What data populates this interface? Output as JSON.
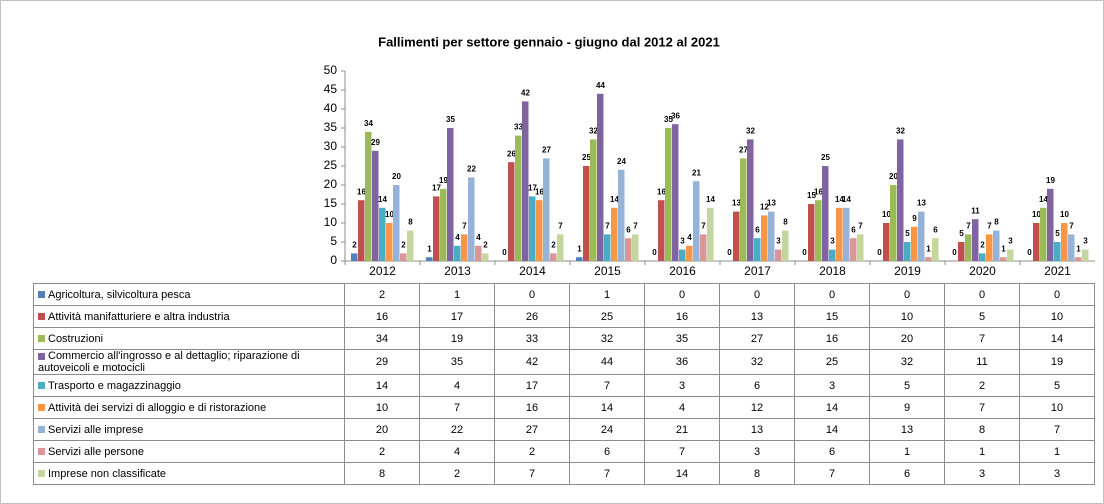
{
  "chart_data": {
    "type": "bar",
    "title": "Fallimenti per settore gennaio - giugno dal 2012 al 2021",
    "categories": [
      "2012",
      "2013",
      "2014",
      "2015",
      "2016",
      "2017",
      "2018",
      "2019",
      "2020",
      "2021"
    ],
    "ylim": [
      0,
      50
    ],
    "yticks": [
      0,
      5,
      10,
      15,
      20,
      25,
      30,
      35,
      40,
      45,
      50
    ],
    "grid": false,
    "series": [
      {
        "name": "Agricoltura, silvicoltura pesca",
        "color": "#4F81BD",
        "values": [
          2,
          1,
          0,
          1,
          0,
          0,
          0,
          0,
          0,
          0
        ]
      },
      {
        "name": "Attività manifatturiere e altra industria",
        "color": "#C0504D",
        "values": [
          16,
          17,
          26,
          25,
          16,
          13,
          15,
          10,
          5,
          10
        ]
      },
      {
        "name": "Costruzioni",
        "color": "#9BBB59",
        "values": [
          34,
          19,
          33,
          32,
          35,
          27,
          16,
          20,
          7,
          14
        ]
      },
      {
        "name": "Commercio all'ingrosso e al dettaglio; riparazione di autoveicoli e motocicli",
        "color": "#8064A2",
        "values": [
          29,
          35,
          42,
          44,
          36,
          32,
          25,
          32,
          11,
          19
        ]
      },
      {
        "name": "Trasporto e magazzinaggio",
        "color": "#4BACC6",
        "values": [
          14,
          4,
          17,
          7,
          3,
          6,
          3,
          5,
          2,
          5
        ]
      },
      {
        "name": "Attività dei servizi di alloggio e di ristorazione",
        "color": "#F79646",
        "values": [
          10,
          7,
          16,
          14,
          4,
          12,
          14,
          9,
          7,
          10
        ]
      },
      {
        "name": "Servizi alle imprese",
        "color": "#95B3D7",
        "values": [
          20,
          22,
          27,
          24,
          21,
          13,
          14,
          13,
          8,
          7
        ]
      },
      {
        "name": "Servizi alle persone",
        "color": "#D99694",
        "values": [
          2,
          4,
          2,
          6,
          7,
          3,
          6,
          1,
          1,
          1
        ]
      },
      {
        "name": "Imprese non classificate",
        "color": "#C3D69B",
        "values": [
          8,
          2,
          7,
          7,
          14,
          8,
          7,
          6,
          3,
          3
        ]
      }
    ]
  }
}
